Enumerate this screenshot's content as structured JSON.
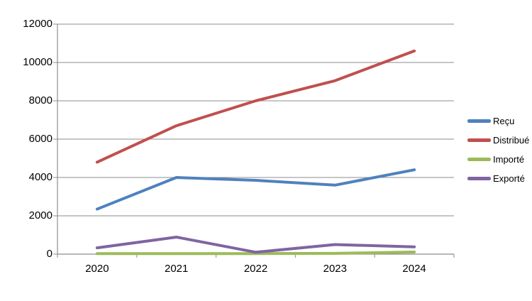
{
  "chart_data": {
    "type": "line",
    "categories": [
      "2020",
      "2021",
      "2022",
      "2023",
      "2024"
    ],
    "series": [
      {
        "name": "Reçu",
        "color": "#4F81BD",
        "values": [
          2350,
          4000,
          3850,
          3600,
          4400
        ]
      },
      {
        "name": "Distribué",
        "color": "#C0504D",
        "values": [
          4800,
          6700,
          8000,
          9050,
          10600
        ]
      },
      {
        "name": "Importé",
        "color": "#9BBB59",
        "values": [
          30,
          30,
          30,
          40,
          110
        ]
      },
      {
        "name": "Exporté",
        "color": "#8064A2",
        "values": [
          330,
          890,
          100,
          500,
          380
        ]
      }
    ],
    "ylim": [
      0,
      12000
    ],
    "y_tick_step": 2000,
    "y_tick_labels": [
      "0",
      "2000",
      "4000",
      "6000",
      "8000",
      "10000",
      "12000"
    ],
    "grid": true,
    "legend_position": "right",
    "gridline_color": "#8E8E8E",
    "axis_color": "#8E8E8E",
    "text_color": "#000000",
    "background_color": "#FFFFFF"
  }
}
